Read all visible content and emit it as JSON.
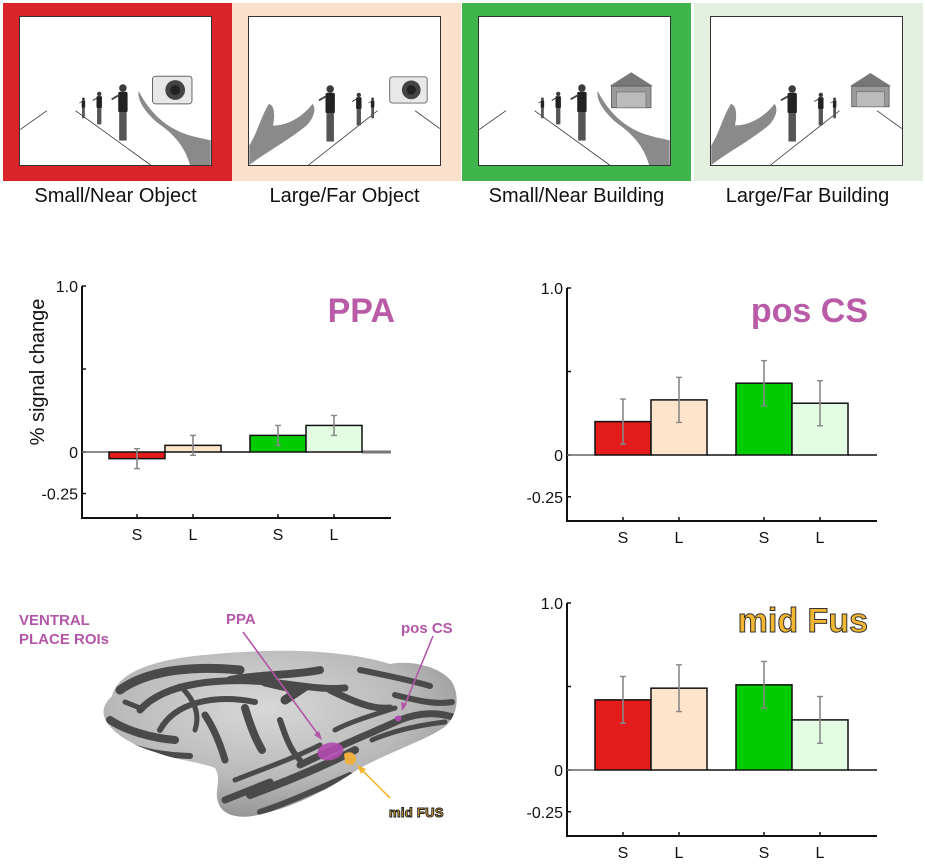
{
  "conditions": [
    {
      "label": "Small/Near Object",
      "frame_color": "#d9242a",
      "object": "camera",
      "hand": "near"
    },
    {
      "label": "Large/Far Object",
      "frame_color": "#fbe1cc",
      "object": "camera",
      "hand": "far"
    },
    {
      "label": "Small/Near Building",
      "frame_color": "#3fb54c",
      "object": "building",
      "hand": "near"
    },
    {
      "label": "Large/Far Building",
      "frame_color": "#e3efdf",
      "object": "building",
      "hand": "far"
    }
  ],
  "brain": {
    "heading_line1": "VENTRAL",
    "heading_line2": "PLACE ROIs",
    "labels": {
      "ppa": "PPA",
      "pos_cs": "pos CS",
      "mid_fus": "mid FUS"
    },
    "roi_color": "#b456a8",
    "fus_color": "#f2b630"
  },
  "chart_data": [
    {
      "type": "bar",
      "title": "PPA",
      "title_color": "#b95ba7",
      "ylabel": "% signal change",
      "xlabel": "",
      "ylim": [
        -0.4,
        1.0
      ],
      "yticks": [
        1.0,
        0.5,
        0,
        -0.25
      ],
      "ytick_labels": [
        "1.0",
        "",
        "0",
        "-0.25"
      ],
      "categories": [
        "S",
        "L",
        "S",
        "L"
      ],
      "groups": [
        "Object",
        "Object",
        "Building",
        "Building"
      ],
      "values": [
        -0.04,
        0.04,
        0.1,
        0.16
      ],
      "errors": [
        0.06,
        0.06,
        0.06,
        0.06
      ],
      "colors": [
        "#e31b1b",
        "#ffe4cc",
        "#00cc00",
        "#e3fde3"
      ],
      "grid": false
    },
    {
      "type": "bar",
      "title": "pos CS",
      "title_color": "#b95ba7",
      "ylabel": "",
      "xlabel": "",
      "ylim": [
        -0.4,
        1.0
      ],
      "yticks": [
        1.0,
        0.5,
        0,
        -0.25
      ],
      "ytick_labels": [
        "1.0",
        "",
        "0",
        "-0.25"
      ],
      "categories": [
        "S",
        "L",
        "S",
        "L"
      ],
      "groups": [
        "Object",
        "Object",
        "Building",
        "Building"
      ],
      "values": [
        0.2,
        0.33,
        0.43,
        0.31
      ],
      "errors": [
        0.135,
        0.135,
        0.135,
        0.135
      ],
      "colors": [
        "#e31b1b",
        "#ffe4cc",
        "#00cc00",
        "#e3fde3"
      ],
      "grid": false
    },
    {
      "type": "bar",
      "title": "mid Fus",
      "title_color": "#f2b630",
      "ylabel": "",
      "xlabel": "",
      "ylim": [
        -0.4,
        1.0
      ],
      "yticks": [
        1.0,
        0.5,
        0,
        -0.25
      ],
      "ytick_labels": [
        "1.0",
        "",
        "0",
        "-0.25"
      ],
      "categories": [
        "S",
        "L",
        "S",
        "L"
      ],
      "groups": [
        "Object",
        "Object",
        "Building",
        "Building"
      ],
      "values": [
        0.42,
        0.49,
        0.51,
        0.3
      ],
      "errors": [
        0.14,
        0.14,
        0.14,
        0.14
      ],
      "colors": [
        "#e31b1b",
        "#ffe4cc",
        "#00cc00",
        "#e3fde3"
      ],
      "grid": false
    }
  ]
}
